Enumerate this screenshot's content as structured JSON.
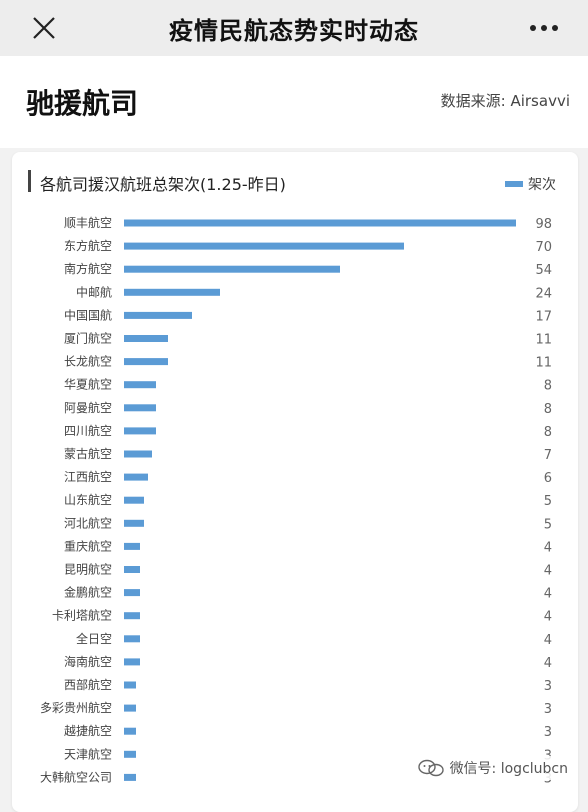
{
  "topbar": {
    "title": "疫情民航态势实时动态"
  },
  "header": {
    "title": "驰援航司",
    "source": "数据来源: Airsavvi"
  },
  "chart_header": {
    "title": "各航司援汉航班总架次(1.25-昨日)",
    "legend": "架次"
  },
  "watermark": {
    "text": "微信号: logclubcn"
  },
  "colors": {
    "bar": "#5b9bd5",
    "background": "#f2f2f2",
    "card": "#ffffff"
  },
  "chart_data": {
    "type": "bar",
    "orientation": "horizontal",
    "title": "各航司援汉航班总架次(1.25-昨日)",
    "legend_position": "top-right",
    "categories": [
      "顺丰航空",
      "东方航空",
      "南方航空",
      "中邮航",
      "中国国航",
      "厦门航空",
      "长龙航空",
      "华夏航空",
      "阿曼航空",
      "四川航空",
      "蒙古航空",
      "江西航空",
      "山东航空",
      "河北航空",
      "重庆航空",
      "昆明航空",
      "金鹏航空",
      "卡利塔航空",
      "全日空",
      "海南航空",
      "西部航空",
      "多彩贵州航空",
      "越捷航空",
      "天津航空",
      "大韩航空公司"
    ],
    "series": [
      {
        "name": "架次",
        "values": [
          98,
          70,
          54,
          24,
          17,
          11,
          11,
          8,
          8,
          8,
          7,
          6,
          5,
          5,
          4,
          4,
          4,
          4,
          4,
          4,
          3,
          3,
          3,
          3,
          3
        ]
      }
    ],
    "xlim": [
      0,
      98
    ],
    "grid": false
  }
}
